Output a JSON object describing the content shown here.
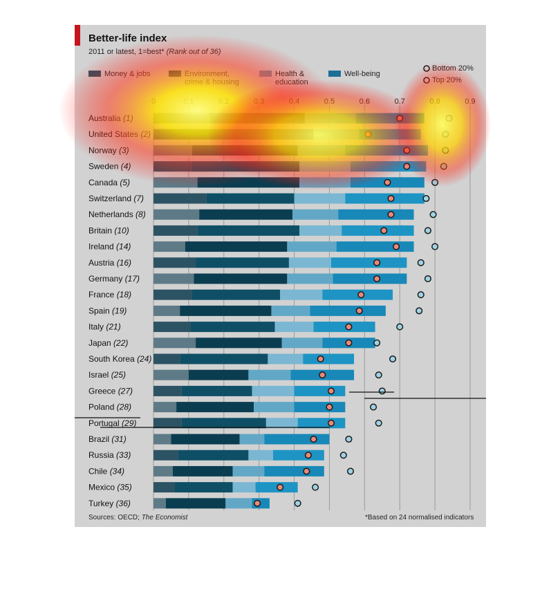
{
  "header": {
    "title": "Better-life index",
    "subtitle_main": "2011 or latest, 1=best*",
    "subtitle_rank": "(Rank out of 36)"
  },
  "legend": {
    "money": "Money & jobs",
    "environment_1": "Environment,",
    "environment_2": "crime & housing",
    "health_1": "Health &",
    "health_2": "education",
    "wellbeing": "Well-being",
    "bottom": "Bottom 20%",
    "top": "Top 20%"
  },
  "footer": {
    "sources_label": "Sources: OECD; ",
    "sources_italic": "The Economist",
    "note": "*Based on 24 normalised indicators"
  },
  "colors": {
    "money": [
      "#5e7a86",
      "#2c5363"
    ],
    "environment": [
      "#0b3d50",
      "#0e4f66"
    ],
    "health": [
      "#62a8c6",
      "#7bb7d2"
    ],
    "wellbeing": [
      "#1888b8",
      "#1d94c4"
    ],
    "bottom_marker": "#e8897a",
    "top_marker": "#9fd3e3"
  },
  "chart_data": {
    "type": "bar",
    "orientation": "horizontal-stacked",
    "xlim": [
      0,
      0.9
    ],
    "ticks": [
      "0",
      "0.1",
      "0.2",
      "0.3",
      "0.4",
      "0.5",
      "0.6",
      "0.7",
      "0.8",
      "0.9"
    ],
    "tick_values": [
      0,
      0.1,
      0.2,
      0.3,
      0.4,
      0.5,
      0.6,
      0.7,
      0.8,
      0.9
    ],
    "categories": [
      "Australia",
      "United States",
      "Norway",
      "Sweden",
      "Canada",
      "Switzerland",
      "Netherlands",
      "Britain",
      "Ireland",
      "Austria",
      "Germany",
      "France",
      "Spain",
      "Italy",
      "Japan",
      "South Korea",
      "Israel",
      "Greece",
      "Poland",
      "Portugal",
      "Brazil",
      "Russia",
      "Chile",
      "Mexico",
      "Turkey"
    ],
    "ranks": [
      "(1)",
      "(2)",
      "(3)",
      "(4)",
      "(5)",
      "(7)",
      "(8)",
      "(10)",
      "(14)",
      "(16)",
      "(17)",
      "(18)",
      "(19)",
      "(21)",
      "(22)",
      "(24)",
      "(25)",
      "(27)",
      "(28)",
      "(29)",
      "(31)",
      "(33)",
      "(34)",
      "(35)",
      "(36)"
    ],
    "series": [
      {
        "name": "Money & jobs",
        "values": [
          0.16,
          0.16,
          0.11,
          0.11,
          0.125,
          0.15,
          0.13,
          0.125,
          0.09,
          0.12,
          0.115,
          0.11,
          0.075,
          0.105,
          0.12,
          0.075,
          0.1,
          0.08,
          0.065,
          0.08,
          0.05,
          0.07,
          0.055,
          0.06,
          0.035
        ]
      },
      {
        "name": "Environment, crime & housing",
        "values": [
          0.27,
          0.295,
          0.3,
          0.305,
          0.29,
          0.25,
          0.265,
          0.29,
          0.29,
          0.265,
          0.265,
          0.25,
          0.26,
          0.24,
          0.245,
          0.25,
          0.17,
          0.2,
          0.22,
          0.24,
          0.195,
          0.2,
          0.17,
          0.165,
          0.17
        ]
      },
      {
        "name": "Health & education",
        "values": [
          0.145,
          0.13,
          0.135,
          0.145,
          0.145,
          0.145,
          0.13,
          0.12,
          0.14,
          0.12,
          0.13,
          0.12,
          0.11,
          0.11,
          0.115,
          0.1,
          0.12,
          0.12,
          0.115,
          0.09,
          0.07,
          0.07,
          0.09,
          0.065,
          0.075
        ]
      },
      {
        "name": "Well-being",
        "values": [
          0.195,
          0.175,
          0.235,
          0.215,
          0.21,
          0.225,
          0.215,
          0.205,
          0.22,
          0.215,
          0.21,
          0.2,
          0.215,
          0.175,
          0.15,
          0.145,
          0.18,
          0.145,
          0.145,
          0.135,
          0.185,
          0.145,
          0.17,
          0.12,
          0.05
        ]
      }
    ],
    "bottom_20": [
      0.7,
      0.61,
      0.72,
      0.72,
      0.665,
      0.675,
      0.675,
      0.655,
      0.69,
      0.635,
      0.635,
      0.59,
      0.585,
      0.555,
      0.555,
      0.475,
      0.48,
      0.505,
      0.5,
      0.505,
      0.455,
      0.44,
      0.435,
      0.36,
      0.295
    ],
    "top_20": [
      0.84,
      0.83,
      0.83,
      0.825,
      0.8,
      0.775,
      0.795,
      0.78,
      0.8,
      0.76,
      0.78,
      0.76,
      0.755,
      0.7,
      0.635,
      0.68,
      0.64,
      0.65,
      0.625,
      0.64,
      0.555,
      0.54,
      0.56,
      0.46,
      0.41
    ]
  }
}
